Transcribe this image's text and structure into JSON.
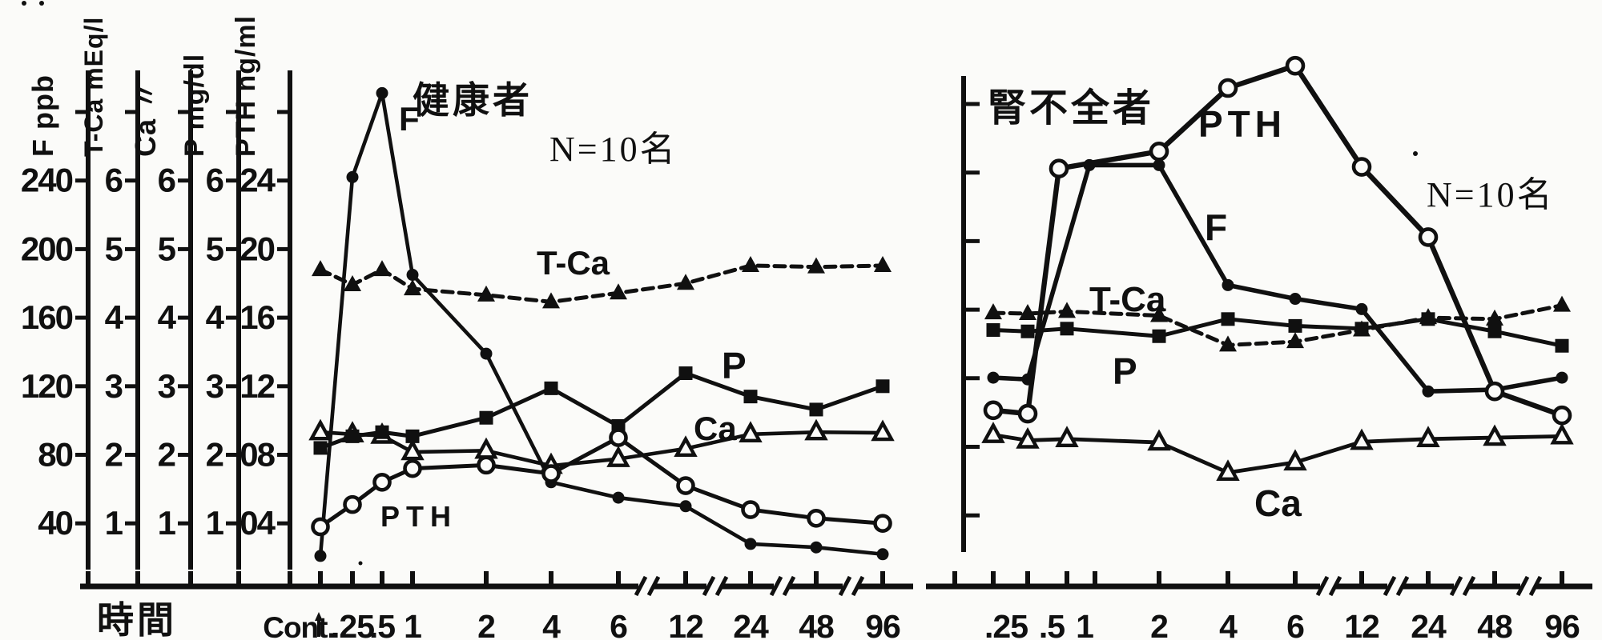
{
  "figure": {
    "x_axis_label": "時間",
    "axis_breaks_between": [
      "6-12",
      "12-24",
      "24-48",
      "48-96"
    ],
    "colors": {
      "ink": "#101010",
      "paper": "#fbfbf9"
    }
  },
  "axes": [
    {
      "name": "F",
      "unit": "ppb",
      "title": "F  ppb",
      "ticks": [
        "240",
        "200",
        "160",
        "120",
        "80",
        "40"
      ]
    },
    {
      "name": "T-Ca",
      "unit": "mEq/l",
      "title": "T-Ca mEq/l",
      "ticks": [
        "6",
        "5",
        "4",
        "3",
        "2",
        "1"
      ]
    },
    {
      "name": "Ca",
      "unit": "〃",
      "title": "Ca  〃",
      "ticks": [
        "6",
        "5",
        "4",
        "3",
        "2",
        "1"
      ]
    },
    {
      "name": "P",
      "unit": "mg/dl",
      "title": "P  mg/dl",
      "ticks": [
        "6",
        "5",
        "4",
        "3",
        "2",
        "1"
      ]
    },
    {
      "name": "PTH",
      "unit": "ng/ml",
      "title": "PTH ng/ml",
      "ticks": [
        "24",
        "20",
        "16",
        "12",
        "08",
        "04"
      ]
    }
  ],
  "chart_data": [
    {
      "type": "line",
      "title": "健康者",
      "n_label": "N=10名",
      "xlabel": "時間",
      "categories": [
        "Cont.",
        ".25",
        ".5",
        "1",
        "2",
        "4",
        "6",
        "12",
        "24",
        "48",
        "96"
      ],
      "series": [
        {
          "name": "F",
          "unit": "ppb",
          "marker": "filled-circle",
          "line": "solid",
          "values": [
            21,
            242,
            291,
            185,
            139,
            64,
            55,
            50,
            28,
            26,
            22
          ]
        },
        {
          "name": "T-Ca",
          "unit": "mEq/l",
          "marker": "filled-triangle",
          "line": "dashed",
          "values": [
            4.7,
            4.48,
            4.7,
            4.42,
            4.33,
            4.23,
            4.36,
            4.5,
            4.76,
            4.74,
            4.76
          ]
        },
        {
          "name": "P",
          "unit": "mg/dl",
          "marker": "filled-square",
          "line": "solid",
          "values": [
            2.1,
            2.27,
            2.33,
            2.27,
            2.54,
            2.97,
            2.42,
            3.19,
            2.85,
            2.66,
            3.0
          ]
        },
        {
          "name": "Ca",
          "unit": "mEq/l",
          "marker": "open-triangle",
          "line": "solid",
          "values": [
            2.33,
            2.3,
            2.28,
            2.04,
            2.06,
            1.84,
            1.94,
            2.09,
            2.3,
            2.33,
            2.32
          ]
        },
        {
          "name": "PTH",
          "unit": "ng/ml",
          "marker": "open-circle",
          "line": "solid",
          "values": [
            0.38,
            0.51,
            0.64,
            0.72,
            0.74,
            0.69,
            0.9,
            0.62,
            0.48,
            0.43,
            0.4
          ]
        }
      ]
    },
    {
      "type": "line",
      "title": "腎不全者",
      "n_label": "N=10名",
      "categories": [
        ".25",
        ".5",
        "1",
        "2",
        "4",
        "6",
        "12",
        "24",
        "48",
        "96"
      ],
      "series": [
        {
          "name": "F",
          "unit": "ppb",
          "marker": "filled-circle",
          "line": "solid",
          "values": [
            125,
            124,
            249,
            249,
            179,
            171,
            165,
            117,
            118,
            125
          ]
        },
        {
          "name": "T-Ca",
          "unit": "mEq/l",
          "marker": "filled-triangle",
          "line": "dashed",
          "values": [
            4.07,
            4.06,
            4.09,
            4.03,
            3.6,
            3.65,
            3.82,
            4.0,
            3.98,
            4.18
          ]
        },
        {
          "name": "P",
          "unit": "mg/dl",
          "marker": "filled-square",
          "line": "solid",
          "values": [
            3.82,
            3.8,
            3.84,
            3.73,
            3.98,
            3.88,
            3.84,
            3.98,
            3.8,
            3.59
          ]
        },
        {
          "name": "Ca",
          "unit": "mEq/l",
          "marker": "open-triangle",
          "line": "solid",
          "values": [
            2.29,
            2.21,
            2.23,
            2.18,
            1.74,
            1.89,
            2.19,
            2.23,
            2.25,
            2.27
          ]
        },
        {
          "name": "PTH",
          "unit": "ng/ml",
          "marker": "open-circle",
          "line": "solid",
          "values": [
            1.06,
            1.04,
            2.47,
            2.57,
            2.94,
            3.07,
            2.48,
            2.07,
            1.17,
            1.03
          ]
        }
      ]
    }
  ]
}
